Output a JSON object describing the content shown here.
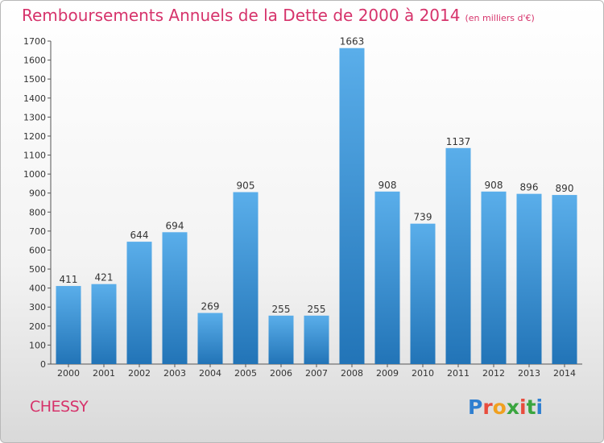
{
  "header": {
    "title": "Remboursements Annuels de la Dette de 2000 à 2014",
    "unit": "(en milliers d'€)"
  },
  "footer": {
    "commune": "CHESSY",
    "logo": "Proxiti"
  },
  "colors": {
    "title": "#d6336b",
    "bar_light": "#5aaeea",
    "bar_dark": "#2274b7",
    "logo_letters": [
      "#2f7fd0",
      "#e84c3d",
      "#f0a020",
      "#3aa53f",
      "#e84c3d",
      "#3aa53f",
      "#2f7fd0"
    ]
  },
  "chart_data": {
    "type": "bar",
    "title": "Remboursements Annuels de la Dette de 2000 à 2014",
    "subtitle": "(en milliers d'€)",
    "categories": [
      "2000",
      "2001",
      "2002",
      "2003",
      "2004",
      "2005",
      "2006",
      "2007",
      "2008",
      "2009",
      "2010",
      "2011",
      "2012",
      "2013",
      "2014"
    ],
    "values": [
      411,
      421,
      644,
      694,
      269,
      905,
      255,
      255,
      1663,
      908,
      739,
      1137,
      908,
      896,
      890
    ],
    "ylim": [
      0,
      1700
    ],
    "yticks": [
      0,
      100,
      200,
      300,
      400,
      500,
      600,
      700,
      800,
      900,
      1000,
      1100,
      1200,
      1300,
      1400,
      1500,
      1600,
      1700
    ],
    "grid": false,
    "legend": "none"
  }
}
